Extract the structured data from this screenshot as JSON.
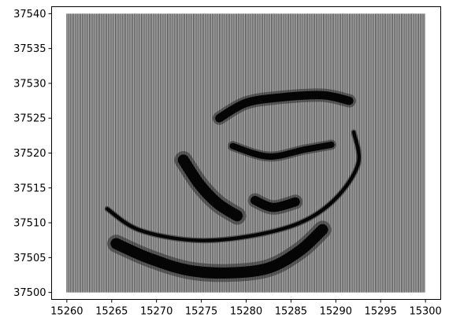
{
  "chart_data": {
    "type": "scatter",
    "title": "",
    "xlabel": "",
    "ylabel": "",
    "xlim": [
      15258.3,
      15301.7
    ],
    "ylim": [
      37499.0,
      37541.0
    ],
    "x_ticks": [
      15260,
      15265,
      15270,
      15275,
      15280,
      15285,
      15290,
      15295,
      15300
    ],
    "y_ticks": [
      37500,
      37505,
      37510,
      37515,
      37520,
      37525,
      37530,
      37535,
      37540
    ],
    "x_tick_labels": [
      "15260",
      "15265",
      "15270",
      "15275",
      "15280",
      "15285",
      "15290",
      "15295",
      "15300"
    ],
    "y_tick_labels": [
      "37500",
      "37505",
      "37510",
      "37515",
      "37520",
      "37525",
      "37530",
      "37535",
      "37540"
    ],
    "grid": false,
    "legend": "none",
    "sampling_grid": {
      "x_range": [
        15260.0,
        15300.0
      ],
      "y_range": [
        37500.0,
        37540.0
      ],
      "description": "dense regular grid of vertical sample lines covering the full extent"
    },
    "dark_features": [
      {
        "name": "upper arc",
        "points": [
          [
            15277.0,
            37525.0
          ],
          [
            15280.0,
            37527.2
          ],
          [
            15284.0,
            37528.0
          ],
          [
            15288.5,
            37528.3
          ],
          [
            15291.5,
            37527.5
          ]
        ],
        "width": 1.2
      },
      {
        "name": "left diagonal band",
        "points": [
          [
            15273.0,
            37519.0
          ],
          [
            15274.8,
            37515.5
          ],
          [
            15276.8,
            37512.8
          ],
          [
            15279.0,
            37511.0
          ]
        ],
        "width": 1.6
      },
      {
        "name": "middle arm",
        "points": [
          [
            15278.5,
            37521.0
          ],
          [
            15282.5,
            37519.5
          ],
          [
            15286.5,
            37520.5
          ],
          [
            15289.5,
            37521.2
          ]
        ],
        "width": 0.9
      },
      {
        "name": "central core",
        "points": [
          [
            15281.0,
            37513.2
          ],
          [
            15283.0,
            37512.2
          ],
          [
            15285.5,
            37513.0
          ]
        ],
        "width": 1.3
      },
      {
        "name": "lower spiral band",
        "points": [
          [
            15265.5,
            37507.0
          ],
          [
            15269.0,
            37505.0
          ],
          [
            15273.5,
            37503.2
          ],
          [
            15278.0,
            37502.8
          ],
          [
            15282.5,
            37503.5
          ],
          [
            15286.0,
            37506.0
          ],
          [
            15288.5,
            37509.0
          ]
        ],
        "width": 1.6
      },
      {
        "name": "outer ring",
        "points": [
          [
            15264.5,
            37512.0
          ],
          [
            15268.0,
            37509.0
          ],
          [
            15274.0,
            37507.5
          ],
          [
            15280.0,
            37508.0
          ],
          [
            15286.0,
            37510.0
          ],
          [
            15290.0,
            37513.5
          ],
          [
            15292.5,
            37518.5
          ],
          [
            15292.0,
            37523.0
          ]
        ],
        "width": 0.5
      }
    ]
  }
}
